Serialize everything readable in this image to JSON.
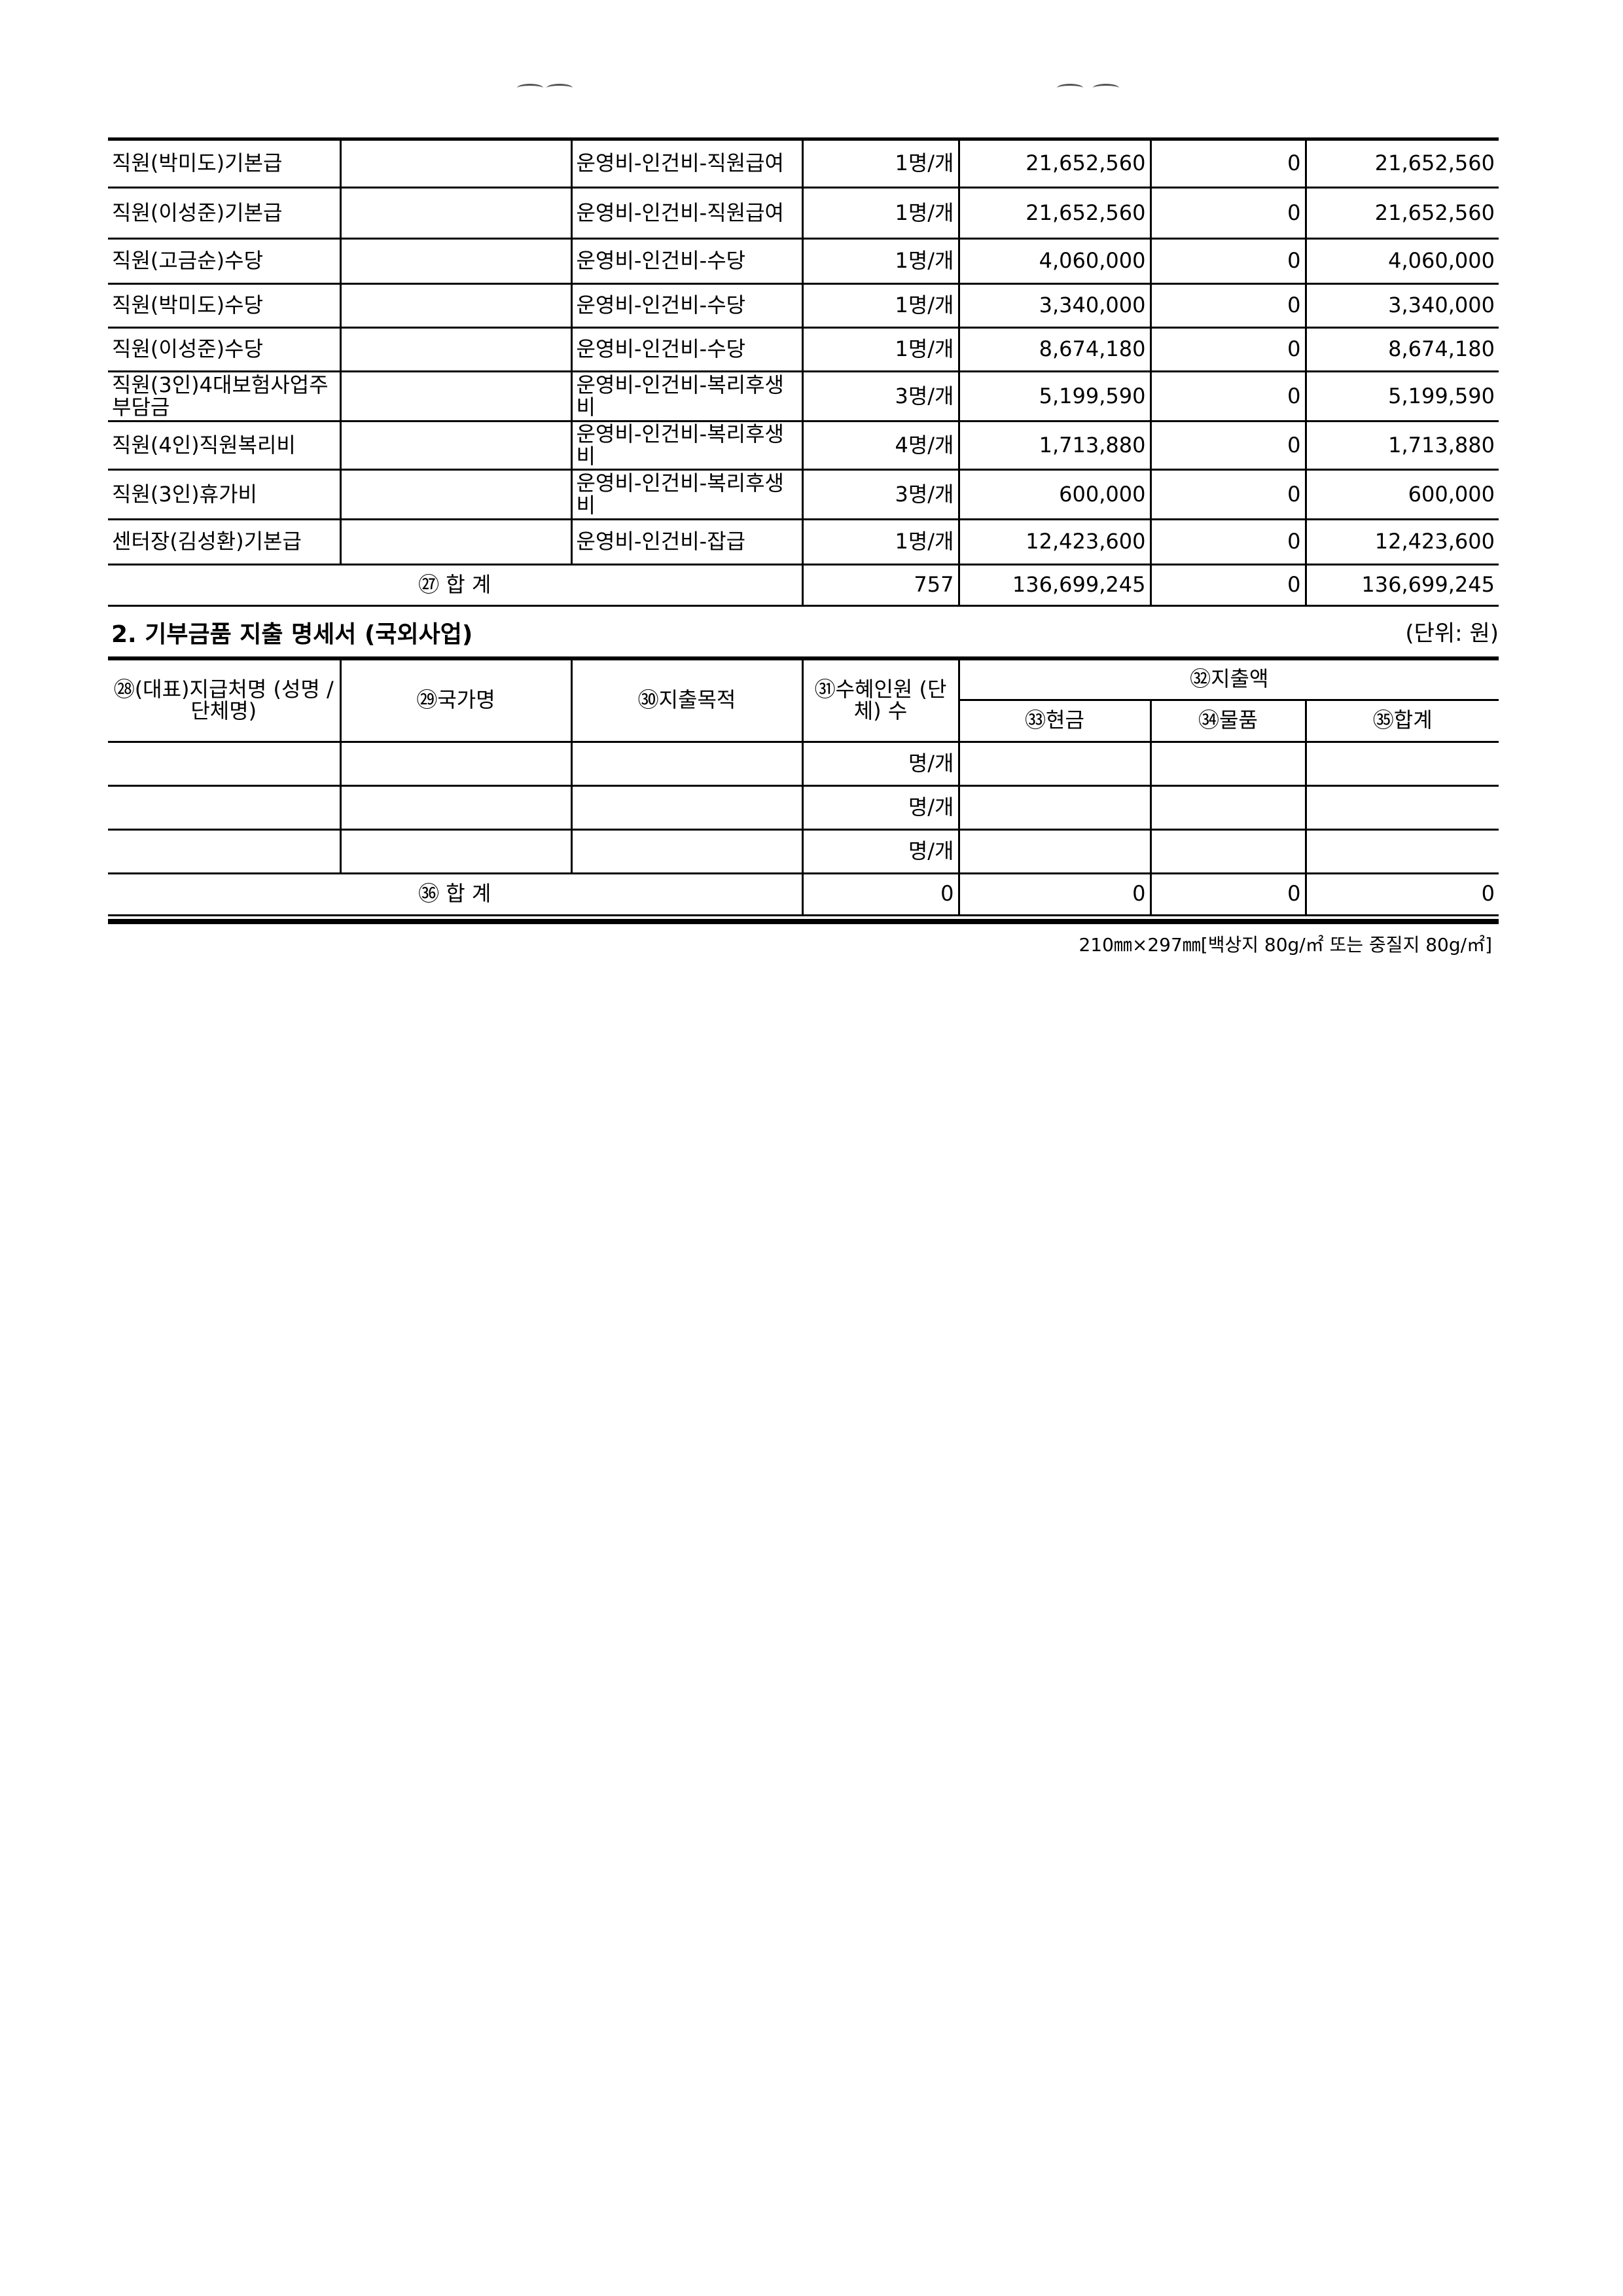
{
  "table1": {
    "rows": [
      {
        "name": "직원(박미도)기본급",
        "col2": "",
        "account": "운영비-인건비-직원급여",
        "count": "1명/개",
        "cash": "21,652,560",
        "goods": "0",
        "total": "21,652,560"
      },
      {
        "name": "직원(이성준)기본급",
        "col2": "",
        "account": "운영비-인건비-직원급여",
        "count": "1명/개",
        "cash": "21,652,560",
        "goods": "0",
        "total": "21,652,560"
      },
      {
        "name": "직원(고금순)수당",
        "col2": "",
        "account": "운영비-인건비-수당",
        "count": "1명/개",
        "cash": "4,060,000",
        "goods": "0",
        "total": "4,060,000"
      },
      {
        "name": "직원(박미도)수당",
        "col2": "",
        "account": "운영비-인건비-수당",
        "count": "1명/개",
        "cash": "3,340,000",
        "goods": "0",
        "total": "3,340,000"
      },
      {
        "name": "직원(이성준)수당",
        "col2": "",
        "account": "운영비-인건비-수당",
        "count": "1명/개",
        "cash": "8,674,180",
        "goods": "0",
        "total": "8,674,180"
      },
      {
        "name": "직원(3인)4대보험사업주부담금",
        "col2": "",
        "account": "운영비-인건비-복리후생비",
        "count": "3명/개",
        "cash": "5,199,590",
        "goods": "0",
        "total": "5,199,590"
      },
      {
        "name": "직원(4인)직원복리비",
        "col2": "",
        "account": "운영비-인건비-복리후생비",
        "count": "4명/개",
        "cash": "1,713,880",
        "goods": "0",
        "total": "1,713,880"
      },
      {
        "name": "직원(3인)휴가비",
        "col2": "",
        "account": "운영비-인건비-복리후생비",
        "count": "3명/개",
        "cash": "600,000",
        "goods": "0",
        "total": "600,000"
      },
      {
        "name": "센터장(김성환)기본급",
        "col2": "",
        "account": "운영비-인건비-잡급",
        "count": "1명/개",
        "cash": "12,423,600",
        "goods": "0",
        "total": "12,423,600"
      }
    ],
    "total": {
      "label": "㉗ 합 계",
      "count": "757",
      "cash": "136,699,245",
      "goods": "0",
      "total": "136,699,245"
    }
  },
  "section2": {
    "title": "2. 기부금품 지출 명세서 (국외사업)",
    "unit": "(단위: 원)",
    "headers": {
      "payee": "㉘(대표)지급처명 (성명 / 단체명)",
      "country": "㉙국가명",
      "purpose": "㉚지출목적",
      "recipients": "㉛수혜인원 (단체) 수",
      "amount": "㉜지출액",
      "cash": "㉝현금",
      "goods": "㉞물품",
      "total": "㉟합계"
    },
    "rows": [
      {
        "count": "명/개"
      },
      {
        "count": "명/개"
      },
      {
        "count": "명/개"
      }
    ],
    "total": {
      "label": "㊱ 합 계",
      "count": "0",
      "cash": "0",
      "goods": "0",
      "total": "0"
    }
  },
  "footer": "210㎜×297㎜[백상지 80g/㎡ 또는 중질지 80g/㎡]"
}
